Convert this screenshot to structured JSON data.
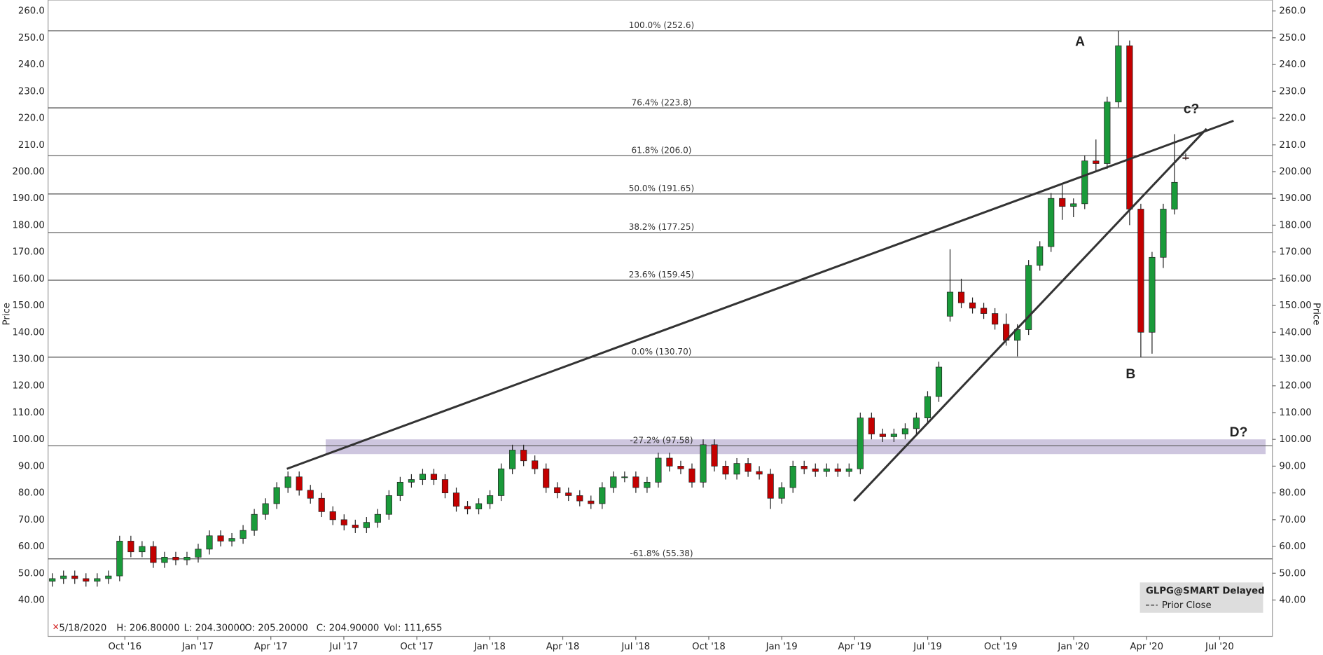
{
  "chart_data": {
    "type": "candlestick",
    "y_axis_label": "Price",
    "ylim": [
      26.4,
      264.1
    ],
    "yticks": [
      {
        "value": 40,
        "label": "40.00"
      },
      {
        "value": 50,
        "label": "50.00"
      },
      {
        "value": 60,
        "label": "60.00"
      },
      {
        "value": 70,
        "label": "70.00"
      },
      {
        "value": 80,
        "label": "80.00"
      },
      {
        "value": 90,
        "label": "90.00"
      },
      {
        "value": 100,
        "label": "100.00"
      },
      {
        "value": 110,
        "label": "110.00"
      },
      {
        "value": 120,
        "label": "120.00"
      },
      {
        "value": 130,
        "label": "130.00"
      },
      {
        "value": 140,
        "label": "140.00"
      },
      {
        "value": 150,
        "label": "150.00"
      },
      {
        "value": 160,
        "label": "160.00"
      },
      {
        "value": 170,
        "label": "170.00"
      },
      {
        "value": 180,
        "label": "180.00"
      },
      {
        "value": 190,
        "label": "190.00"
      },
      {
        "value": 200,
        "label": "200.00"
      },
      {
        "value": 210,
        "label": "210.0"
      },
      {
        "value": 220,
        "label": "220.0"
      },
      {
        "value": 230,
        "label": "230.0"
      },
      {
        "value": 240,
        "label": "240.0"
      },
      {
        "value": 250,
        "label": "250.0"
      },
      {
        "value": 260,
        "label": "260.0"
      }
    ],
    "x_labels": [
      "Oct '16",
      "Jan '17",
      "Apr '17",
      "Jul '17",
      "Oct '17",
      "Jan '18",
      "Apr '18",
      "Jul '18",
      "Oct '18",
      "Jan '19",
      "Apr '19",
      "Jul '19",
      "Oct '19",
      "Jan '20",
      "Apr '20",
      "Jul '20"
    ],
    "colors": {
      "up": "#1a9a3a",
      "down": "#c40000"
    },
    "open": [
      47,
      48,
      49,
      48,
      47,
      48,
      49,
      62,
      58,
      60,
      54,
      56,
      55,
      56,
      59,
      64,
      62,
      63,
      66,
      72,
      76,
      82,
      86,
      81,
      78,
      73,
      70,
      68,
      67,
      69,
      72,
      79,
      84,
      85,
      87,
      85,
      80,
      75,
      74,
      76,
      79,
      89,
      96,
      92,
      89,
      82,
      80,
      79,
      77,
      76,
      82,
      86,
      86,
      82,
      84,
      93,
      90,
      89,
      84,
      98,
      90,
      87,
      91,
      88,
      87,
      78,
      82,
      90,
      89,
      88,
      89,
      88,
      89,
      108,
      102,
      101,
      102,
      104,
      108,
      116,
      146,
      155,
      151,
      149,
      147,
      143,
      137,
      141,
      165,
      172,
      190,
      187,
      188,
      204,
      203,
      226,
      247,
      186,
      140,
      168,
      186,
      205.2
    ],
    "high": [
      50,
      51,
      51,
      50,
      50,
      51,
      64,
      64,
      62,
      62,
      58,
      58,
      58,
      61,
      66,
      66,
      65,
      68,
      74,
      78,
      84,
      88,
      88,
      83,
      80,
      75,
      72,
      70,
      71,
      74,
      81,
      86,
      87,
      89,
      89,
      87,
      82,
      77,
      78,
      81,
      91,
      98,
      98,
      94,
      91,
      84,
      82,
      81,
      79,
      84,
      88,
      88,
      88,
      86,
      95,
      95,
      92,
      91,
      100,
      100,
      92,
      93,
      93,
      90,
      89,
      84,
      92,
      92,
      91,
      91,
      91,
      91,
      110,
      110,
      104,
      104,
      106,
      110,
      118,
      129,
      171,
      160,
      153,
      151,
      149,
      147,
      143,
      167,
      174,
      192,
      195,
      190,
      206,
      212,
      228,
      252.6,
      249,
      188,
      170,
      188,
      214,
      206.8
    ],
    "low": [
      45,
      46,
      46,
      45,
      45,
      46,
      47,
      56,
      56,
      52,
      52,
      53,
      53,
      54,
      57,
      60,
      60,
      61,
      64,
      70,
      74,
      80,
      79,
      76,
      71,
      68,
      66,
      65,
      65,
      67,
      70,
      77,
      82,
      83,
      83,
      78,
      73,
      72,
      72,
      74,
      77,
      87,
      90,
      87,
      80,
      78,
      77,
      75,
      74,
      74,
      80,
      84,
      80,
      80,
      82,
      88,
      87,
      82,
      82,
      88,
      85,
      85,
      86,
      85,
      74,
      76,
      80,
      87,
      86,
      86,
      86,
      86,
      87,
      100,
      99,
      99,
      100,
      102,
      106,
      114,
      144,
      149,
      147,
      145,
      141,
      135,
      131,
      139,
      163,
      170,
      182,
      183,
      186,
      200,
      201,
      224,
      180,
      130.7,
      132,
      164,
      184,
      204.3
    ],
    "close": [
      48,
      49,
      48,
      47,
      48,
      49,
      62,
      58,
      60,
      54,
      56,
      55,
      56,
      59,
      64,
      62,
      63,
      66,
      72,
      76,
      82,
      86,
      81,
      78,
      73,
      70,
      68,
      67,
      69,
      72,
      79,
      84,
      85,
      87,
      85,
      80,
      75,
      74,
      76,
      79,
      89,
      96,
      92,
      89,
      82,
      80,
      79,
      77,
      76,
      82,
      86,
      86,
      82,
      84,
      93,
      90,
      89,
      84,
      98,
      90,
      87,
      91,
      88,
      87,
      78,
      82,
      90,
      89,
      88,
      89,
      88,
      89,
      108,
      102,
      101,
      102,
      104,
      108,
      116,
      127,
      155,
      151,
      149,
      147,
      143,
      137,
      141,
      165,
      172,
      190,
      187,
      188,
      204,
      203,
      226,
      247,
      186,
      140,
      168,
      186,
      196,
      204.9
    ],
    "fib_levels": [
      {
        "label": "100.0% (252.6)",
        "value": 252.6
      },
      {
        "label": "76.4% (223.8)",
        "value": 223.8
      },
      {
        "label": "61.8% (206.0)",
        "value": 206.0
      },
      {
        "label": "50.0% (191.65)",
        "value": 191.65
      },
      {
        "label": "38.2% (177.25)",
        "value": 177.25
      },
      {
        "label": "23.6% (159.45)",
        "value": 159.45
      },
      {
        "label": "0.0% (130.70)",
        "value": 130.7
      },
      {
        "label": "-27.2% (97.58)",
        "value": 97.58
      },
      {
        "label": "-61.8% (55.38)",
        "value": 55.38
      }
    ],
    "zone": [
      94.5,
      100
    ],
    "trend_lines": [
      {
        "y": [
          89,
          219
        ]
      },
      {
        "y": [
          77,
          216
        ]
      }
    ],
    "wave_labels": [
      "A",
      "B",
      "c?",
      "D?"
    ],
    "status": [
      "5/18/2020",
      "H: 206.80000",
      "L: 204.30000",
      "O: 205.20000",
      "C: 204.90000",
      "Vol: 111,655"
    ],
    "legend": {
      "title": "GLPG@SMART Delayed",
      "item": "Prior Close"
    }
  }
}
